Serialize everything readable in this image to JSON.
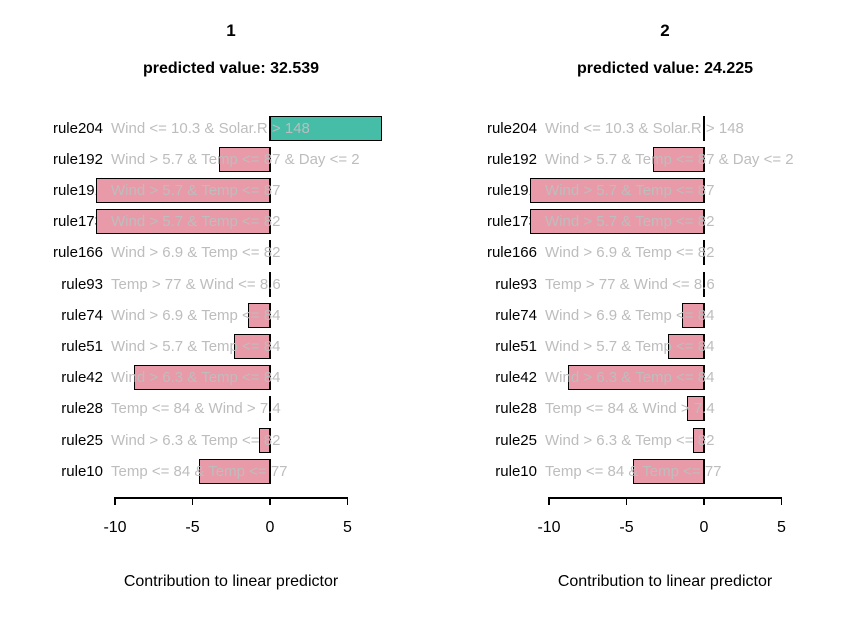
{
  "chart_data": {
    "type": "bar",
    "orientation": "horizontal",
    "description": "Per-observation rule contribution plot with two panels",
    "rules": [
      {
        "id": "rule204",
        "description": "Wind <= 10.3 & Solar.R > 148"
      },
      {
        "id": "rule192",
        "description": "Wind > 5.7 & Temp <= 87 & Day <= 2"
      },
      {
        "id": "rule191",
        "description": "Wind > 5.7 & Temp <= 87"
      },
      {
        "id": "rule173",
        "description": "Wind > 5.7 & Temp <= 82"
      },
      {
        "id": "rule166",
        "description": "Wind > 6.9 & Temp <= 82"
      },
      {
        "id": "rule93",
        "description": "Temp > 77 & Wind <= 8.6"
      },
      {
        "id": "rule74",
        "description": "Wind > 6.9 & Temp <= 84"
      },
      {
        "id": "rule51",
        "description": "Wind > 5.7 & Temp <= 84"
      },
      {
        "id": "rule42",
        "description": "Wind > 6.3 & Temp <= 84"
      },
      {
        "id": "rule28",
        "description": "Temp <= 84 & Wind > 7.4"
      },
      {
        "id": "rule25",
        "description": "Wind > 6.3 & Temp <= 82"
      },
      {
        "id": "rule10",
        "description": "Temp <= 84 & Temp <= 77"
      }
    ],
    "panels": [
      {
        "label": "1",
        "predicted_value": 32.539,
        "predicted_value_text": "predicted value: 32.539",
        "contributions": [
          7.2,
          -3.3,
          -11.2,
          -11.2,
          0,
          0,
          -1.4,
          -2.3,
          -8.8,
          0,
          -0.7,
          -4.6
        ]
      },
      {
        "label": "2",
        "predicted_value": 24.225,
        "predicted_value_text": "predicted value: 24.225",
        "contributions": [
          0,
          -3.3,
          -11.2,
          -11.2,
          0,
          0,
          -1.4,
          -2.3,
          -8.8,
          -1.1,
          -0.7,
          -4.6
        ]
      }
    ],
    "xlabel": "Contribution to linear predictor",
    "x_ticks": [
      -10,
      -5,
      0,
      5
    ],
    "xlim": [
      -11.6,
      7.8
    ],
    "grid": false,
    "legend": false,
    "colors": {
      "positive_bar": "#45BDA7",
      "negative_bar": "#E89AA8",
      "bar_border": "#000000",
      "rule_text": "#BDBDBD",
      "label_text": "#000000",
      "background": "#FFFFFF"
    }
  }
}
